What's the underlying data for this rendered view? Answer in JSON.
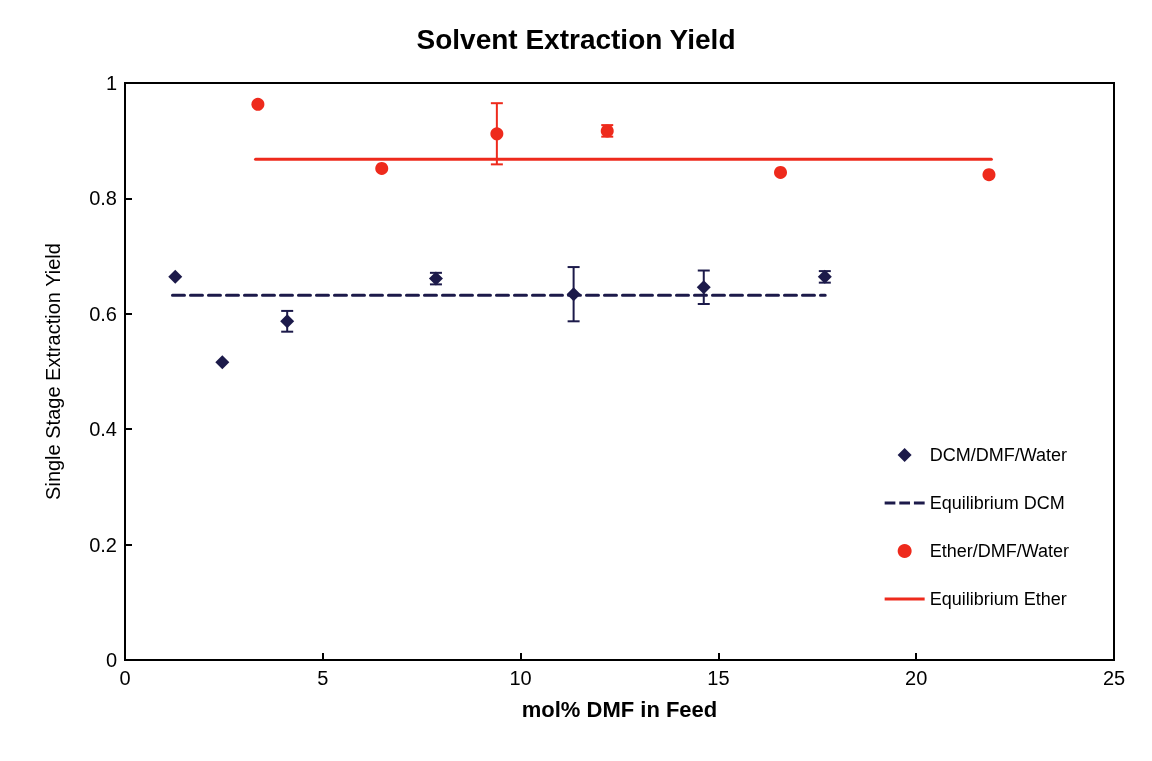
{
  "chart_data": {
    "type": "scatter",
    "title": "Solvent Extraction Yield",
    "xlabel": "mol% DMF in Feed",
    "ylabel": "Single Stage Extraction Yield",
    "xlim": [
      0,
      25
    ],
    "xticks": [
      0,
      5,
      10,
      15,
      20,
      25
    ],
    "ylim": [
      0,
      1
    ],
    "yticks": [
      0,
      0.2,
      0.4,
      0.6,
      0.8,
      1
    ],
    "grid": false,
    "legend": "bottom right",
    "series": [
      {
        "name": "DCM/DMF/Water",
        "type": "scatter",
        "color": "#1c1a4a",
        "marker": "diamond",
        "x": [
          1.27,
          2.46,
          4.1,
          7.86,
          11.34,
          14.63,
          17.69
        ],
        "values": [
          0.664,
          0.516,
          0.587,
          0.661,
          0.634,
          0.646,
          0.664
        ],
        "errors": [
          null,
          null,
          0.018,
          0.01,
          0.047,
          0.029,
          0.01
        ]
      },
      {
        "name": "Equilibrium DCM",
        "type": "line",
        "color": "#1c1a4a",
        "marker": "none",
        "line_style": "dashed",
        "x": [
          1.2,
          17.7
        ],
        "values": [
          0.632,
          0.632
        ]
      },
      {
        "name": "Ether/DMF/Water",
        "type": "scatter",
        "color": "#ee2a1c",
        "marker": "circle",
        "x": [
          3.36,
          6.49,
          9.4,
          12.19,
          16.57,
          21.84
        ],
        "values": [
          0.963,
          0.852,
          0.912,
          0.917,
          0.845,
          0.841
        ],
        "errors": [
          null,
          null,
          0.053,
          0.01,
          null,
          null
        ]
      },
      {
        "name": "Equilibrium Ether",
        "type": "line",
        "color": "#ee2a1c",
        "marker": "none",
        "line_style": "solid",
        "x": [
          3.3,
          21.9
        ],
        "values": [
          0.868,
          0.868
        ]
      }
    ]
  }
}
